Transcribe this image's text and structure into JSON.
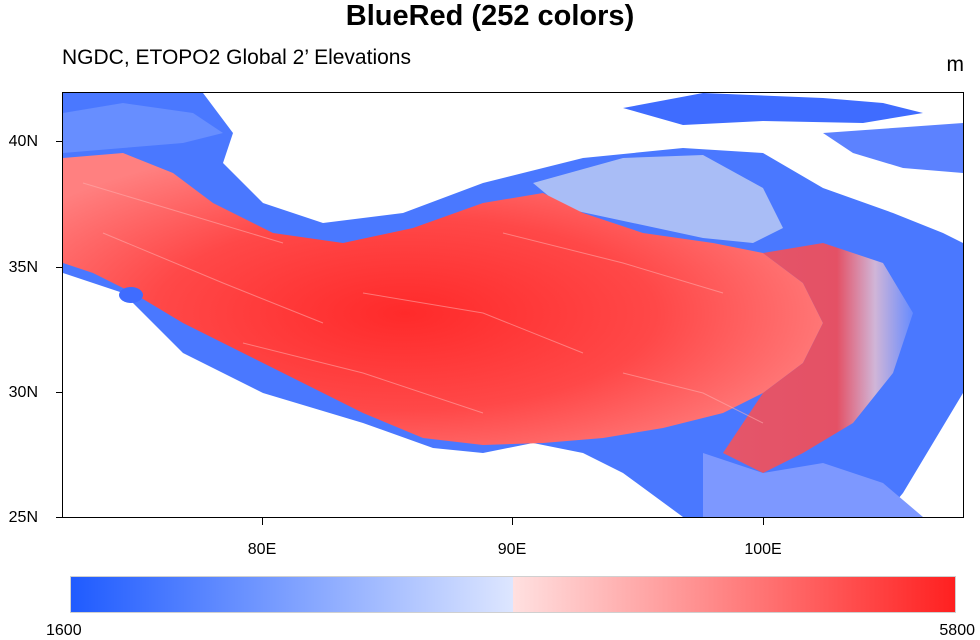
{
  "title": "BlueRed (252 colors)",
  "subtitle": "NGDC, ETOPO2 Global 2’ Elevations",
  "units": "m",
  "map": {
    "lon_range": [
      72,
      108
    ],
    "lat_range": [
      25,
      42
    ],
    "lat_labels": [
      "40N",
      "35N",
      "30N",
      "25N"
    ],
    "lon_labels": [
      "80E",
      "90E",
      "100E"
    ]
  },
  "colorbar": {
    "min_label": "1600",
    "max_label": "5800",
    "colors": {
      "low": "#1f5bff",
      "mid_low": "#dde6ff",
      "mid_high": "#ffe0e0",
      "high": "#ff2020"
    }
  }
}
